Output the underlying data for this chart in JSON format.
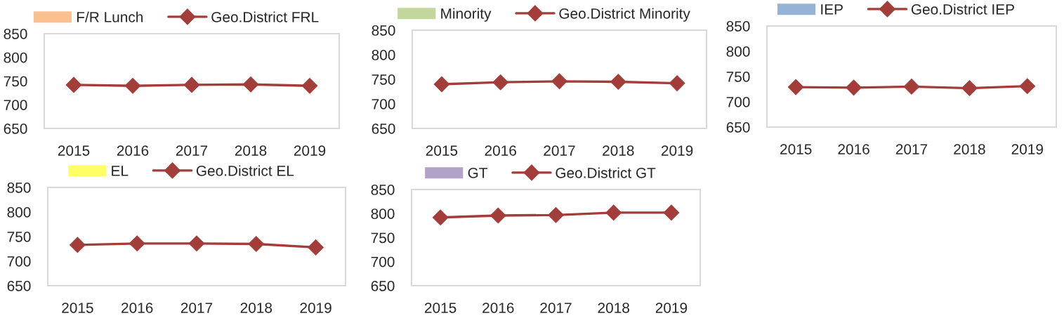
{
  "chart_data": [
    {
      "type": "line",
      "categories": [
        "2015",
        "2016",
        "2017",
        "2018",
        "2019"
      ],
      "ylim": [
        650,
        850
      ],
      "yticks": [
        650,
        700,
        750,
        800,
        850
      ],
      "grid": false,
      "legend": "top",
      "marker": "diamond",
      "line_style": "solid",
      "series": [
        {
          "name": "F/R Lunch",
          "type": "bar",
          "color": "#fac090",
          "values": [
            null,
            null,
            null,
            null,
            null
          ]
        },
        {
          "name": "Geo.District FRL",
          "color": "#a33d3a",
          "values": [
            742,
            740,
            742,
            743,
            740
          ]
        }
      ]
    },
    {
      "type": "line",
      "categories": [
        "2015",
        "2016",
        "2017",
        "2018",
        "2019"
      ],
      "ylim": [
        650,
        850
      ],
      "yticks": [
        650,
        700,
        750,
        800,
        850
      ],
      "grid": false,
      "legend": "top",
      "marker": "diamond",
      "line_style": "solid",
      "series": [
        {
          "name": "Minority",
          "type": "bar",
          "color": "#c3d69b",
          "values": [
            null,
            null,
            null,
            null,
            null
          ]
        },
        {
          "name": "Geo.District Minority",
          "color": "#a33d3a",
          "values": [
            740,
            744,
            746,
            745,
            742
          ]
        }
      ]
    },
    {
      "type": "line",
      "categories": [
        "2015",
        "2016",
        "2017",
        "2018",
        "2019"
      ],
      "ylim": [
        650,
        850
      ],
      "yticks": [
        650,
        700,
        750,
        800,
        850
      ],
      "grid": false,
      "legend": "top",
      "marker": "diamond",
      "line_style": "solid",
      "series": [
        {
          "name": "IEP",
          "type": "bar",
          "color": "#95b3d7",
          "values": [
            null,
            null,
            null,
            null,
            null
          ]
        },
        {
          "name": "Geo.District IEP",
          "color": "#a33d3a",
          "values": [
            729,
            728,
            730,
            727,
            731
          ]
        }
      ]
    },
    {
      "type": "line",
      "categories": [
        "2015",
        "2016",
        "2017",
        "2018",
        "2019"
      ],
      "ylim": [
        650,
        850
      ],
      "yticks": [
        650,
        700,
        750,
        800,
        850
      ],
      "grid": false,
      "legend": "top",
      "marker": "diamond",
      "line_style": "solid",
      "series": [
        {
          "name": "EL",
          "type": "bar",
          "color": "#ffff66",
          "values": [
            null,
            null,
            null,
            null,
            null
          ]
        },
        {
          "name": "Geo.District EL",
          "color": "#a33d3a",
          "values": [
            733,
            736,
            736,
            735,
            728
          ]
        }
      ]
    },
    {
      "type": "line",
      "categories": [
        "2015",
        "2016",
        "2017",
        "2018",
        "2019"
      ],
      "ylim": [
        650,
        850
      ],
      "yticks": [
        650,
        700,
        750,
        800,
        850
      ],
      "grid": false,
      "legend": "top",
      "marker": "diamond",
      "line_style": "solid",
      "series": [
        {
          "name": "GT",
          "type": "bar",
          "color": "#b3a2c7",
          "values": [
            null,
            null,
            null,
            null,
            null
          ]
        },
        {
          "name": "Geo.District GT",
          "color": "#a33d3a",
          "values": [
            792,
            796,
            797,
            802,
            802
          ]
        }
      ]
    }
  ]
}
